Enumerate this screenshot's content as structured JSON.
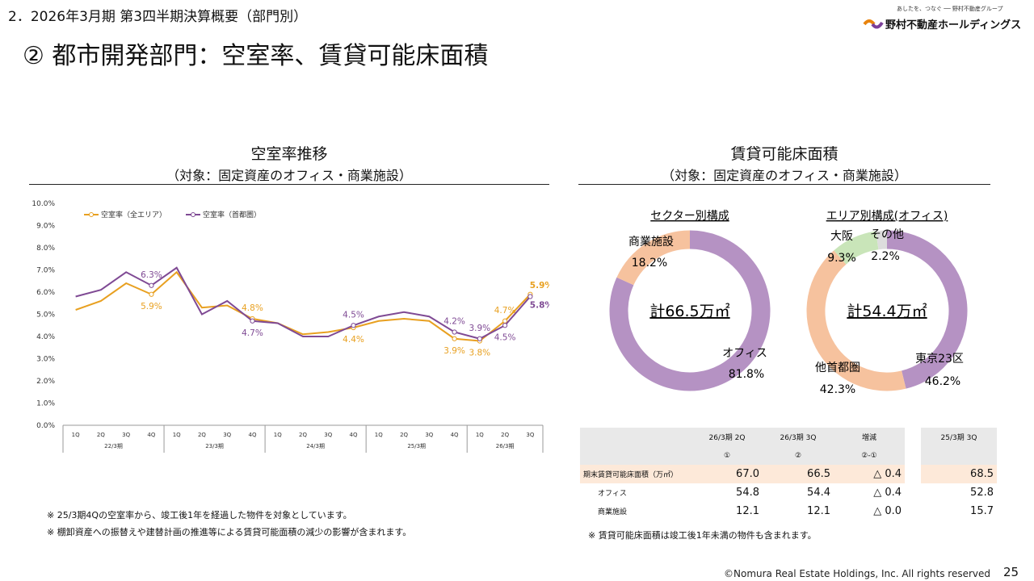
{
  "header": {
    "section": "2．2026年3月期 第3四半期決算概要（部門別）",
    "title": "② 都市開発部門：空室率、賃貸可能床面積"
  },
  "logo": {
    "tagline": "あしたを、つなぐ ── 野村不動産グループ",
    "name": "野村不動産ホールディングス"
  },
  "left_panel": {
    "title": "空室率推移",
    "subtitle": "（対象：固定資産のオフィス・商業施設）",
    "notes": [
      "※ 25/3期4Qの空室率から、竣工後1年を経過した物件を対象としています。",
      "※ 棚卸資産への振替えや建替計画の推進等による賃貸可能面積の減少の影響が含まれます。"
    ]
  },
  "right_panel": {
    "title": "賃貸可能床面積",
    "subtitle": "（対象：固定資産のオフィス・商業施設）",
    "note": "※ 賃貸可能床面積は竣工後1年未満の物件も含まれます。"
  },
  "colors": {
    "all_area": "#e8a020",
    "metro": "#7f4a94",
    "office": "#b592c3",
    "commercial": "#f6c29e",
    "other_metro": "#f6c29e",
    "osaka": "#c9e5b9"
  },
  "chart_data": [
    {
      "type": "line",
      "ylim": [
        0,
        10
      ],
      "y_ticks": [
        "0.0%",
        "1.0%",
        "2.0%",
        "3.0%",
        "4.0%",
        "5.0%",
        "6.0%",
        "7.0%",
        "8.0%",
        "9.0%",
        "10.0%"
      ],
      "categories": [
        "1Q",
        "2Q",
        "3Q",
        "4Q",
        "1Q",
        "2Q",
        "3Q",
        "4Q",
        "1Q",
        "2Q",
        "3Q",
        "4Q",
        "1Q",
        "2Q",
        "3Q",
        "4Q",
        "1Q",
        "2Q",
        "3Q"
      ],
      "fiscal_years": [
        "22/3期",
        "23/3期",
        "24/3期",
        "25/3期",
        "26/3期"
      ],
      "series": [
        {
          "name": "空室率（全エリア）",
          "values": [
            5.2,
            5.6,
            6.4,
            5.9,
            6.9,
            5.3,
            5.4,
            4.8,
            4.6,
            4.1,
            4.2,
            4.4,
            4.7,
            4.8,
            4.7,
            3.9,
            3.8,
            4.7,
            5.9
          ]
        },
        {
          "name": "空室率（首都圏）",
          "values": [
            5.8,
            6.1,
            6.9,
            6.3,
            7.1,
            5.0,
            5.6,
            4.7,
            4.6,
            4.0,
            4.0,
            4.5,
            4.9,
            5.1,
            4.9,
            4.2,
            3.9,
            4.5,
            5.8
          ]
        }
      ],
      "data_labels": [
        {
          "text": "6.3%",
          "series": 1,
          "index": 3
        },
        {
          "text": "5.9%",
          "series": 0,
          "index": 3
        },
        {
          "text": "4.8%",
          "series": 0,
          "index": 7
        },
        {
          "text": "4.7%",
          "series": 1,
          "index": 7
        },
        {
          "text": "4.5%",
          "series": 1,
          "index": 11
        },
        {
          "text": "4.4%",
          "series": 0,
          "index": 11
        },
        {
          "text": "4.2%",
          "series": 1,
          "index": 15
        },
        {
          "text": "3.9%",
          "series": 0,
          "index": 15
        },
        {
          "text": "3.9%",
          "series": 1,
          "index": 16
        },
        {
          "text": "3.8%",
          "series": 0,
          "index": 16
        },
        {
          "text": "4.7%",
          "series": 0,
          "index": 17
        },
        {
          "text": "4.5%",
          "series": 1,
          "index": 17
        },
        {
          "text": "5.9%",
          "series": 0,
          "index": 18
        },
        {
          "text": "5.8%",
          "series": 1,
          "index": 18
        }
      ],
      "legend_position": "top-left"
    },
    {
      "type": "pie",
      "title": "セクター別構成",
      "center_label": "計66.5万㎡",
      "slices": [
        {
          "name": "オフィス",
          "value": 81.8,
          "label": "81.8%"
        },
        {
          "name": "商業施設",
          "value": 18.2,
          "label": "18.2%"
        }
      ]
    },
    {
      "type": "pie",
      "title": "エリア別構成(オフィス)",
      "center_label": "計54.4万㎡",
      "slices": [
        {
          "name": "東京23区",
          "value": 46.2,
          "label": "46.2%"
        },
        {
          "name": "他首都圏",
          "value": 42.3,
          "label": "42.3%"
        },
        {
          "name": "大阪",
          "value": 9.3,
          "label": "9.3%"
        },
        {
          "name": "その他",
          "value": 2.2,
          "label": "2.2%"
        }
      ]
    },
    {
      "type": "table",
      "headers": [
        "26/3期 2Q",
        "26/3期 3Q",
        "増減",
        "25/3期 3Q"
      ],
      "subheaders": [
        "①",
        "②",
        "②-①"
      ],
      "rows": [
        {
          "label": "期末賃貸可能床面積（万㎡）",
          "values": [
            "67.0",
            "66.5",
            "△ 0.4",
            "68.5"
          ]
        },
        {
          "label": "オフィス",
          "values": [
            "54.8",
            "54.4",
            "△ 0.4",
            "52.8"
          ]
        },
        {
          "label": "商業施設",
          "values": [
            "12.1",
            "12.1",
            "△ 0.0",
            "15.7"
          ]
        }
      ]
    }
  ],
  "footer": {
    "copyright": "©Nomura Real Estate Holdings, Inc. All rights reserved",
    "page": "25"
  }
}
